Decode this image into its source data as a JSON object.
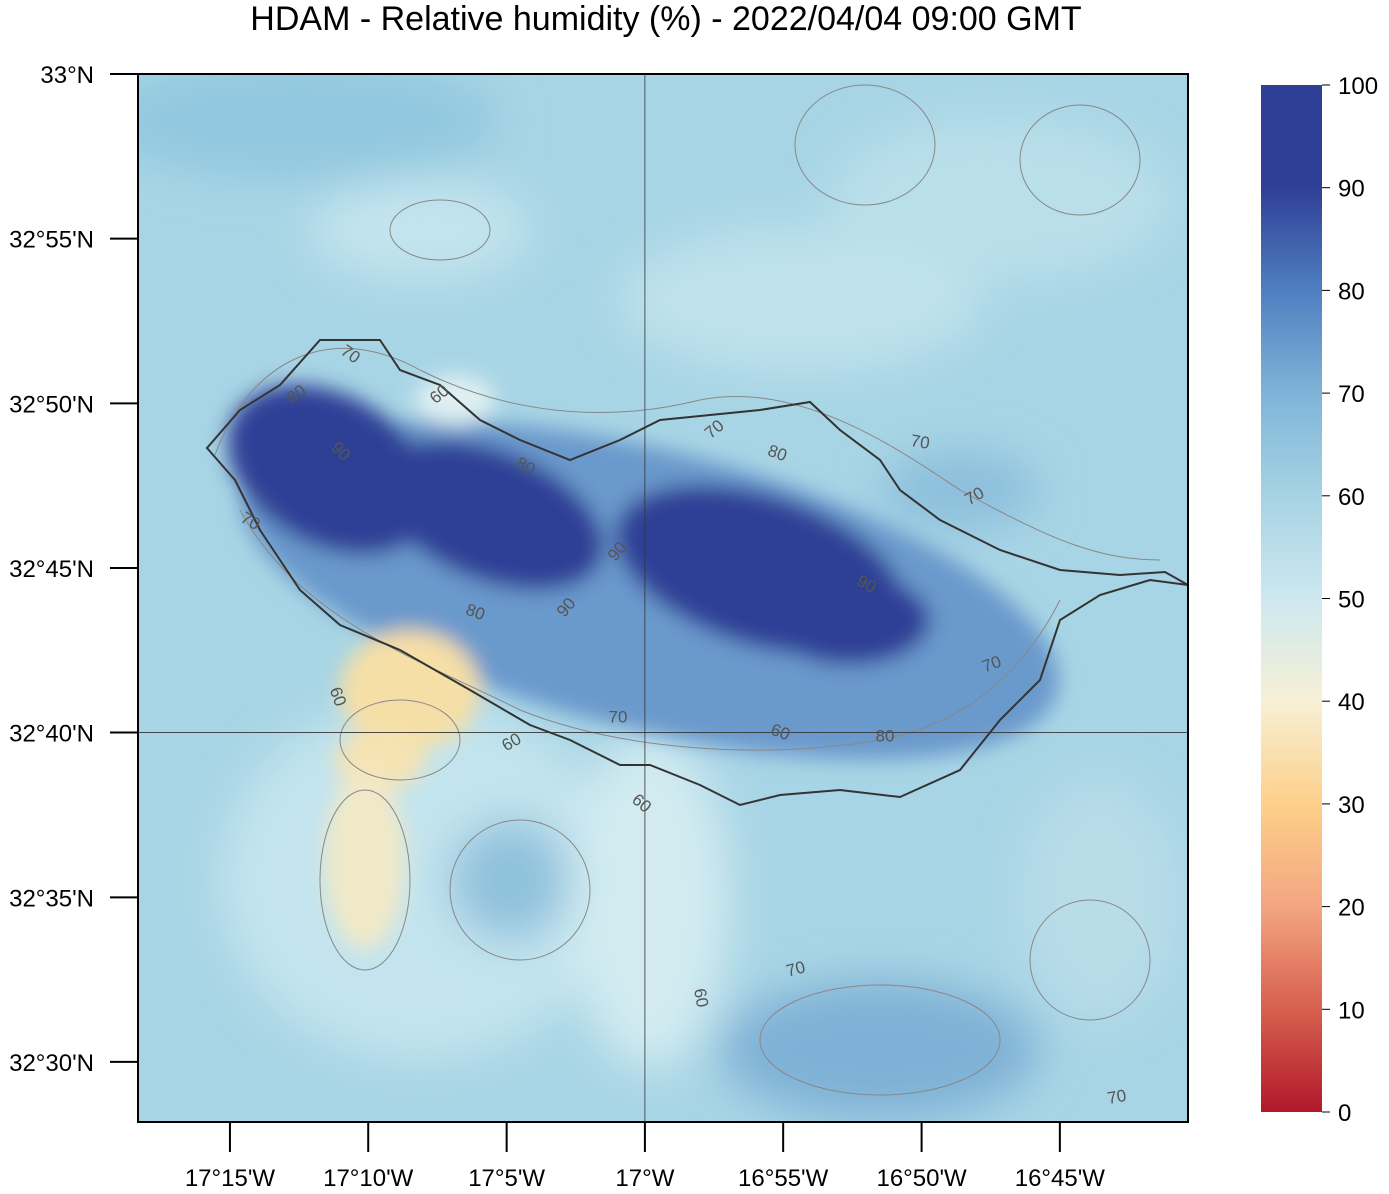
{
  "chart_data": {
    "type": "map",
    "title": "HDAM - Relative humidity (%)  -  2022/04/04  09:00 GMT",
    "xlim": [
      -17.3054,
      -16.6728
    ],
    "ylim": [
      32.4696,
      33
    ],
    "xticks": [
      {
        "value": -17.25,
        "label": "17°15'W"
      },
      {
        "value": -17.1667,
        "label": "17°10'W"
      },
      {
        "value": -17.0833,
        "label": "17°5'W"
      },
      {
        "value": -17,
        "label": "17°W"
      },
      {
        "value": -16.9167,
        "label": "16°55'W"
      },
      {
        "value": -16.8333,
        "label": "16°50'W"
      },
      {
        "value": -16.75,
        "label": "16°45'W"
      }
    ],
    "yticks": [
      {
        "value": 33,
        "label": "33°N"
      },
      {
        "value": 32.9167,
        "label": "32°55'N"
      },
      {
        "value": 32.8333,
        "label": "32°50'N"
      },
      {
        "value": 32.75,
        "label": "32°45'N"
      },
      {
        "value": 32.6667,
        "label": "32°40'N"
      },
      {
        "value": 32.5833,
        "label": "32°35'N"
      },
      {
        "value": 32.5,
        "label": "32°30'N"
      }
    ],
    "grid_lines": {
      "x": -17,
      "y": 32.6667
    },
    "colorbar": {
      "lim": [
        0,
        100
      ],
      "ticks": [
        0,
        10,
        20,
        30,
        40,
        50,
        60,
        70,
        80,
        90,
        100
      ],
      "colors": [
        "#b2182b",
        "#d6604d",
        "#f4a582",
        "#fdd08a",
        "#f7f0d5",
        "#cde8f0",
        "#a6d3e4",
        "#7fb4d8",
        "#4f7fc0",
        "#2f3f96",
        "#2f3f96"
      ]
    },
    "contour_labels": [
      70,
      80,
      60,
      90,
      80,
      70,
      90,
      80,
      90,
      70,
      80,
      70,
      70,
      90,
      70,
      60,
      70,
      60,
      60,
      80,
      60,
      70,
      60,
      70
    ]
  }
}
